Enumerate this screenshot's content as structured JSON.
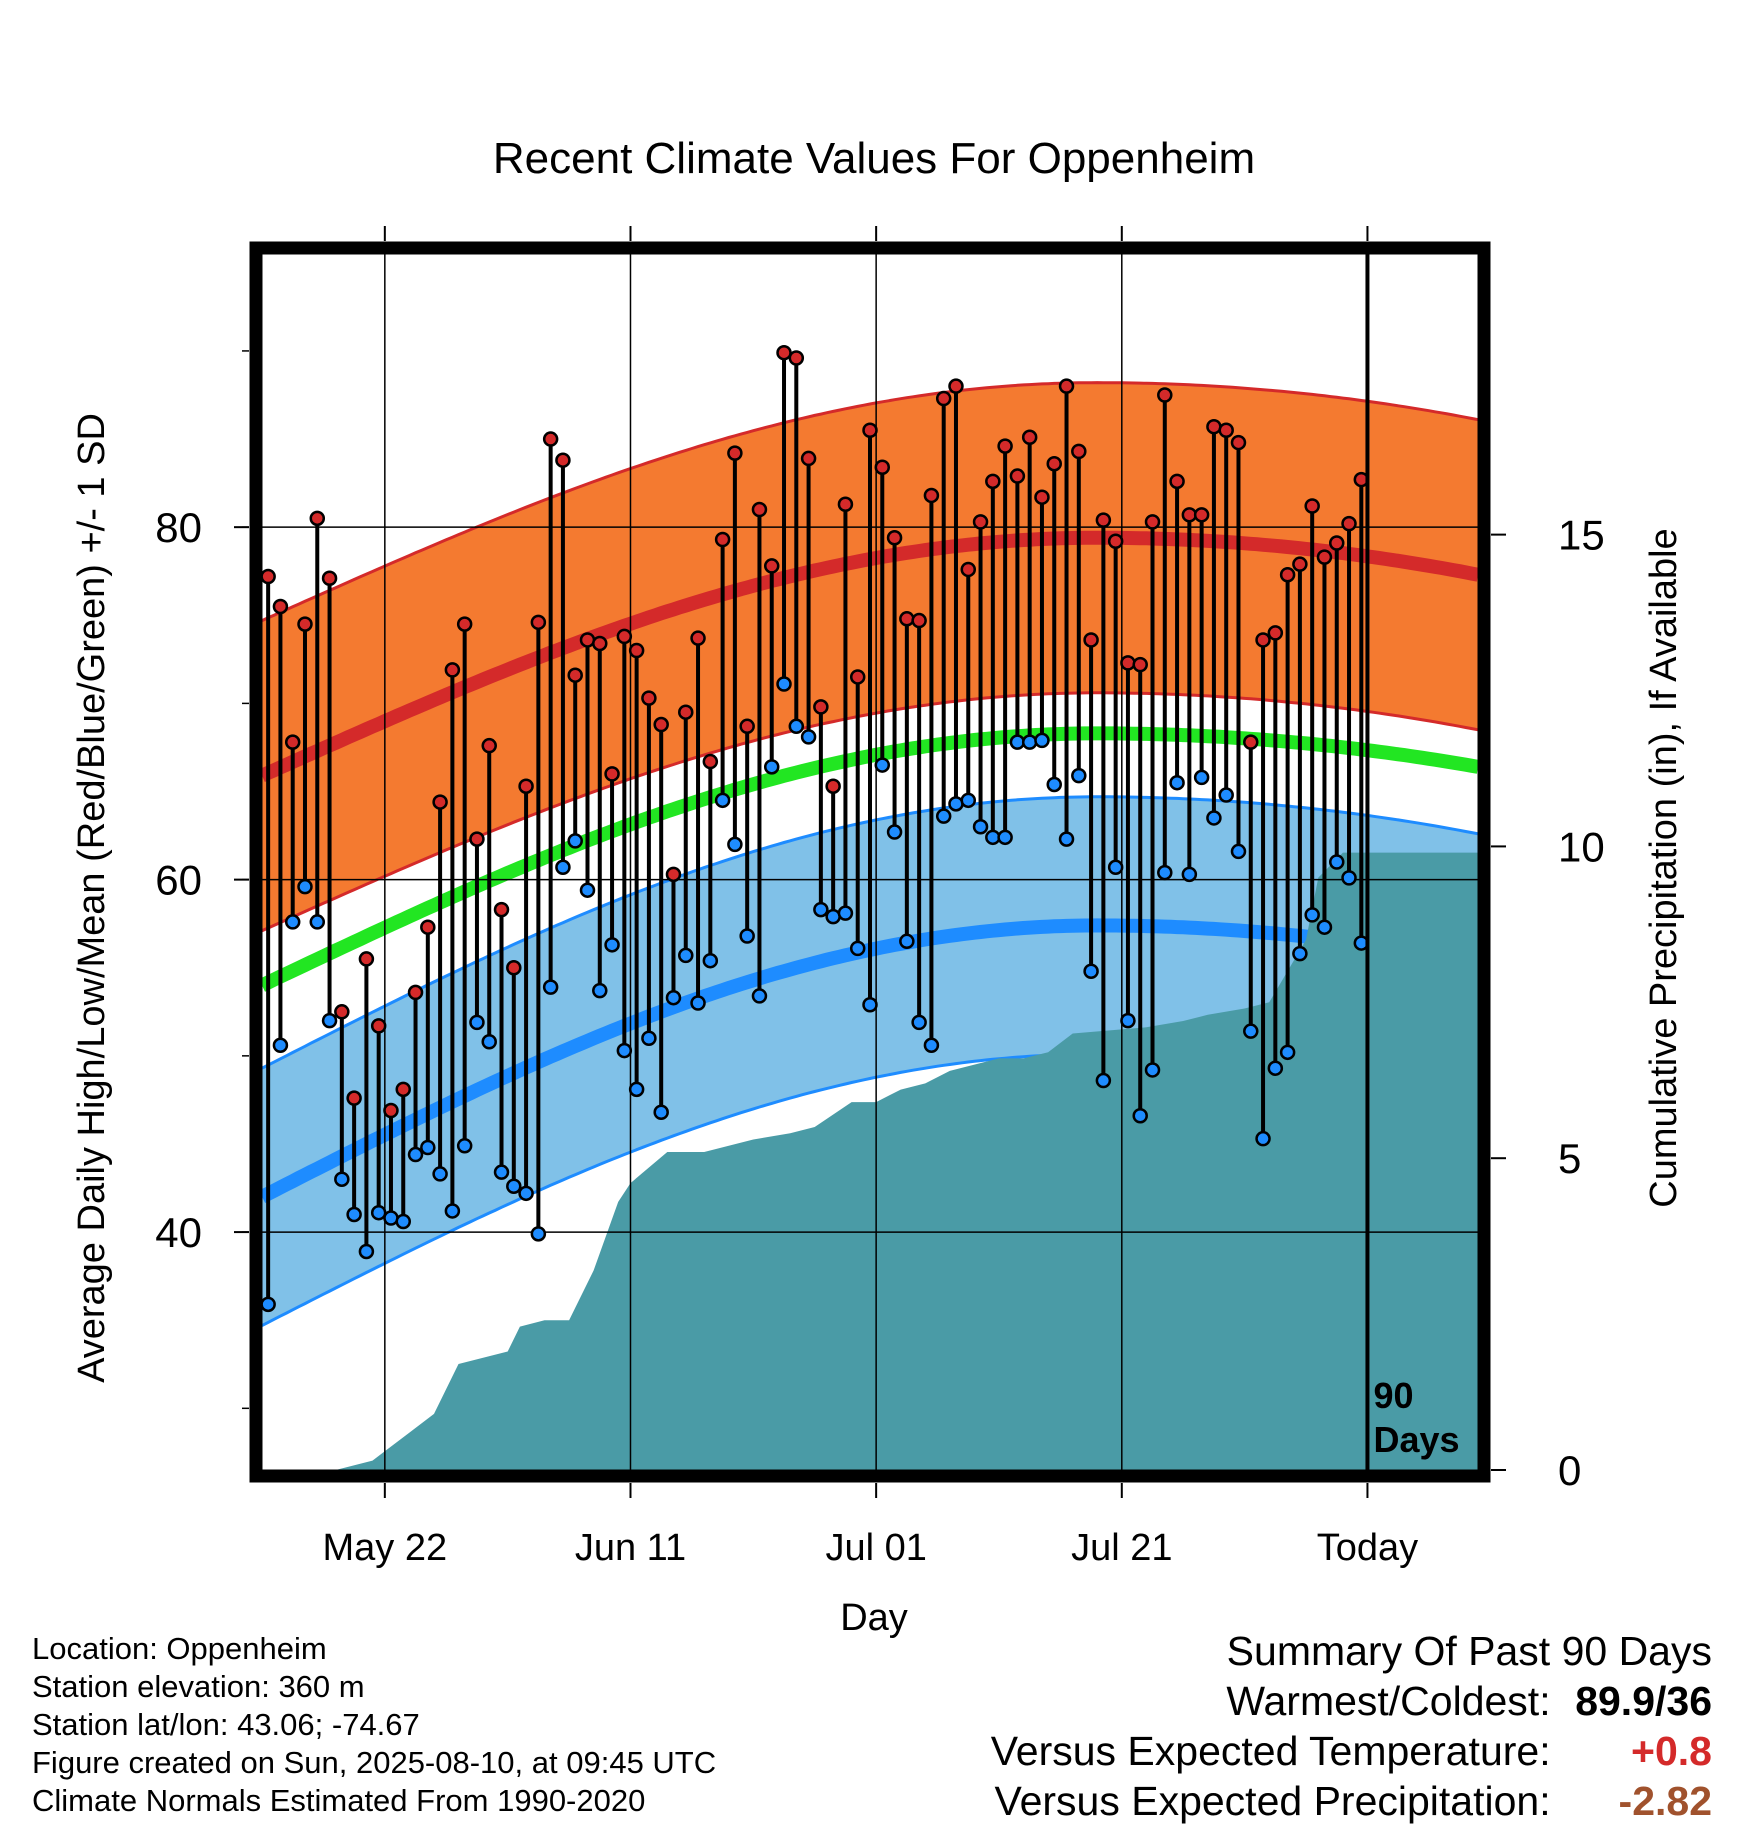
{
  "chart_data": {
    "type": "line",
    "title": "Recent Climate Values For Oppenheim",
    "xlabel": "Day",
    "ylabel": "Average Daily High/Low/Mean (Red/Blue/Green) +/- 1 SD",
    "y2label": "Cumulative Precipitation (in), If Available",
    "ylim": [
      26.5,
      95.5
    ],
    "y2lim": [
      0,
      19.5
    ],
    "y_ticks": [
      40,
      60,
      80
    ],
    "y2_ticks": [
      0,
      5,
      10,
      15
    ],
    "x_ticks": [
      "May 22",
      "Jun 11",
      "Jul 01",
      "Jul 21",
      "Today"
    ],
    "grid": true,
    "today_marker": "90\nDays",
    "days_offset_start": -90,
    "days_offset_end": 9,
    "x_tick_offsets": [
      -80,
      -60,
      -40,
      -20,
      0
    ],
    "series": [
      {
        "key": "daily_high",
        "color": "#d42a2a",
        "values": [
          77.2,
          75.5,
          67.8,
          74.5,
          80.5,
          77.1,
          52.5,
          47.6,
          55.5,
          51.7,
          46.9,
          48.1,
          53.6,
          57.3,
          64.4,
          71.9,
          74.5,
          62.3,
          67.6,
          58.3,
          55.0,
          65.3,
          74.6,
          85.0,
          83.8,
          71.6,
          73.6,
          73.4,
          66.0,
          73.8,
          73.0,
          70.3,
          68.8,
          60.3,
          69.5,
          73.7,
          66.7,
          79.3,
          84.2,
          68.7,
          81.0,
          77.8,
          89.9,
          89.6,
          83.9,
          69.8,
          65.3,
          81.3,
          71.5,
          85.5,
          83.4,
          79.4,
          74.8,
          74.7,
          81.8,
          87.3,
          88.0,
          77.6,
          80.3,
          82.6,
          84.6,
          82.9,
          85.1,
          81.7,
          83.6,
          88.0,
          84.3,
          73.6,
          80.4,
          79.2,
          72.3,
          72.2,
          80.3,
          87.5,
          82.6,
          80.7,
          80.7,
          85.7,
          85.5,
          84.8,
          67.8,
          73.6,
          74.0,
          77.3,
          77.9,
          81.2,
          78.3,
          79.1,
          80.2,
          82.7
        ]
      },
      {
        "key": "daily_low",
        "color": "#1e8cff",
        "values": [
          35.9,
          50.6,
          57.6,
          59.6,
          57.6,
          52.0,
          43.0,
          41.0,
          38.9,
          41.1,
          40.8,
          40.6,
          44.4,
          44.8,
          43.3,
          41.2,
          44.9,
          51.9,
          50.8,
          43.4,
          42.6,
          42.2,
          39.9,
          53.9,
          60.7,
          62.2,
          59.4,
          53.7,
          56.3,
          50.3,
          48.1,
          51.0,
          46.8,
          53.3,
          55.7,
          53.0,
          55.4,
          64.5,
          62.0,
          56.8,
          53.4,
          66.4,
          71.1,
          68.7,
          68.1,
          58.3,
          57.9,
          58.1,
          56.1,
          52.9,
          66.5,
          62.7,
          56.5,
          51.9,
          50.6,
          63.6,
          64.3,
          64.5,
          63.0,
          62.4,
          62.4,
          67.8,
          67.8,
          67.9,
          65.4,
          62.3,
          65.9,
          54.8,
          48.6,
          60.7,
          52.0,
          46.6,
          49.2,
          60.4,
          65.5,
          60.3,
          65.8,
          63.5,
          64.8,
          61.6,
          51.4,
          45.3,
          49.3,
          50.2,
          55.8,
          58.0,
          57.3,
          61.0,
          60.1,
          56.4
        ]
      },
      {
        "key": "normal_high",
        "color": "#d42a2a",
        "start": 65.9,
        "peak": 79.4,
        "end": 77.3
      },
      {
        "key": "normal_mean",
        "color": "#22e622",
        "start": 54.0,
        "peak": 68.3,
        "end": 66.4
      },
      {
        "key": "normal_low",
        "color": "#1e8cff",
        "start": 42.0,
        "peak": 57.4,
        "end": 55.3
      },
      {
        "key": "high_sd_band",
        "color": "#f47a30",
        "sd": 8.8
      },
      {
        "key": "low_sd_band",
        "color": "#80c1e8",
        "sd": 7.3
      },
      {
        "key": "cumulative_precip",
        "color": "#4a9ba6",
        "x": [
          -90,
          -84,
          -81,
          -78,
          -76,
          -74,
          -72,
          -70,
          -69,
          -67,
          -65,
          -63,
          -61,
          -60,
          -57,
          -54,
          -50,
          -47,
          -45,
          -42,
          -40,
          -38,
          -36,
          -34,
          -30,
          -28,
          -26,
          -24,
          -18,
          -15,
          -13,
          -10,
          -8,
          -5,
          -4,
          -2,
          0,
          9
        ],
        "values": [
          0,
          0,
          0.15,
          0.6,
          0.9,
          1.7,
          1.8,
          1.9,
          2.3,
          2.4,
          2.4,
          3.2,
          4.3,
          4.6,
          5.1,
          5.1,
          5.3,
          5.4,
          5.5,
          5.9,
          5.9,
          6.1,
          6.2,
          6.4,
          6.6,
          6.6,
          6.7,
          7.0,
          7.1,
          7.2,
          7.3,
          7.4,
          7.5,
          8.5,
          9.5,
          9.9,
          9.9,
          9.9
        ]
      }
    ]
  },
  "footer": {
    "location": "Location: Oppenheim",
    "elevation": "Station elevation: 360 m",
    "latlon": "Station lat/lon: 43.06; -74.67",
    "created": "Figure created on Sun, 2025-08-10, at 09:45 UTC",
    "normals": "Climate Normals Estimated From 1990-2020"
  },
  "summary": {
    "title": "Summary Of Past 90 Days",
    "warm_cold_label": "Warmest/Coldest:",
    "warm_cold_value": "89.9/36",
    "temp_label": "Versus Expected Temperature:",
    "temp_value": "+0.8",
    "temp_color": "#d42a2a",
    "precip_label": "Versus Expected Precipitation:",
    "precip_value": "-2.82",
    "precip_color": "#a0522d"
  }
}
